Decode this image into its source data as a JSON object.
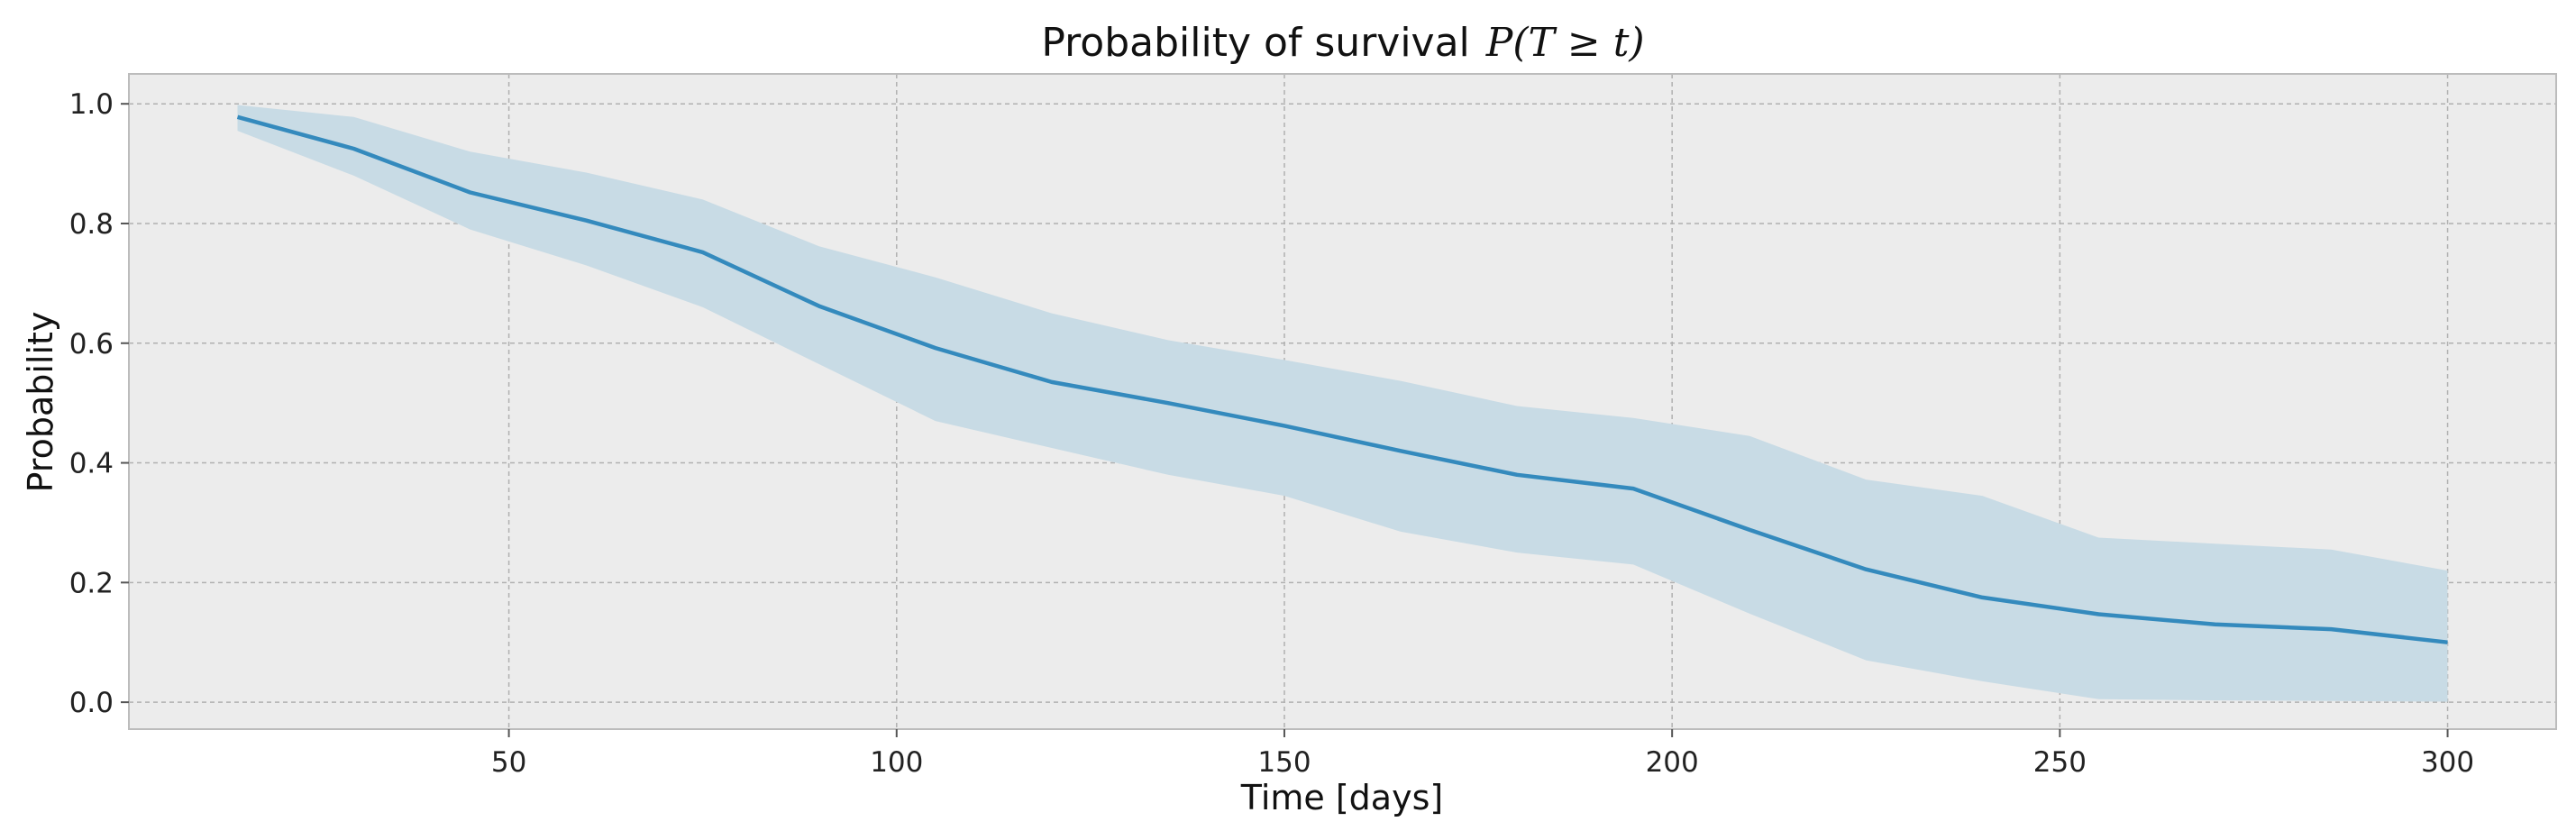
{
  "chart_data": {
    "type": "line",
    "title": "Probability of survival",
    "title_math": "P(T ≥ t)",
    "xlabel": "Time [days]",
    "ylabel": "Probability",
    "xlim": [
      1,
      314
    ],
    "ylim": [
      -0.045,
      1.05
    ],
    "xticks": [
      50,
      100,
      150,
      200,
      250,
      300
    ],
    "yticks": [
      0.0,
      0.2,
      0.4,
      0.6,
      0.8,
      1.0
    ],
    "xtick_labels": [
      "50",
      "100",
      "150",
      "200",
      "250",
      "300"
    ],
    "ytick_labels": [
      "0.0",
      "0.2",
      "0.4",
      "0.6",
      "0.8",
      "1.0"
    ],
    "grid": true,
    "colors": {
      "line": "#348abd",
      "band": "#c8dbe5",
      "background": "#ececec",
      "grid": "#b0b0b0",
      "frame": "#bcbcbc"
    },
    "x": [
      15,
      30,
      45,
      60,
      75,
      90,
      105,
      120,
      135,
      150,
      165,
      180,
      195,
      210,
      225,
      240,
      255,
      270,
      285,
      300
    ],
    "series": [
      {
        "values": [
          0.978,
          0.925,
          0.852,
          0.805,
          0.752,
          0.662,
          0.592,
          0.535,
          0.5,
          0.462,
          0.42,
          0.38,
          0.357,
          0.288,
          0.222,
          0.175,
          0.147,
          0.13,
          0.122,
          0.1
        ],
        "lower": [
          0.955,
          0.88,
          0.79,
          0.73,
          0.66,
          0.565,
          0.47,
          0.425,
          0.38,
          0.345,
          0.285,
          0.25,
          0.23,
          0.148,
          0.07,
          0.035,
          0.005,
          0.003,
          0.002,
          0.001
        ],
        "upper": [
          0.998,
          0.978,
          0.92,
          0.885,
          0.84,
          0.762,
          0.71,
          0.65,
          0.605,
          0.572,
          0.537,
          0.495,
          0.475,
          0.445,
          0.372,
          0.345,
          0.275,
          0.265,
          0.255,
          0.22
        ]
      }
    ]
  }
}
